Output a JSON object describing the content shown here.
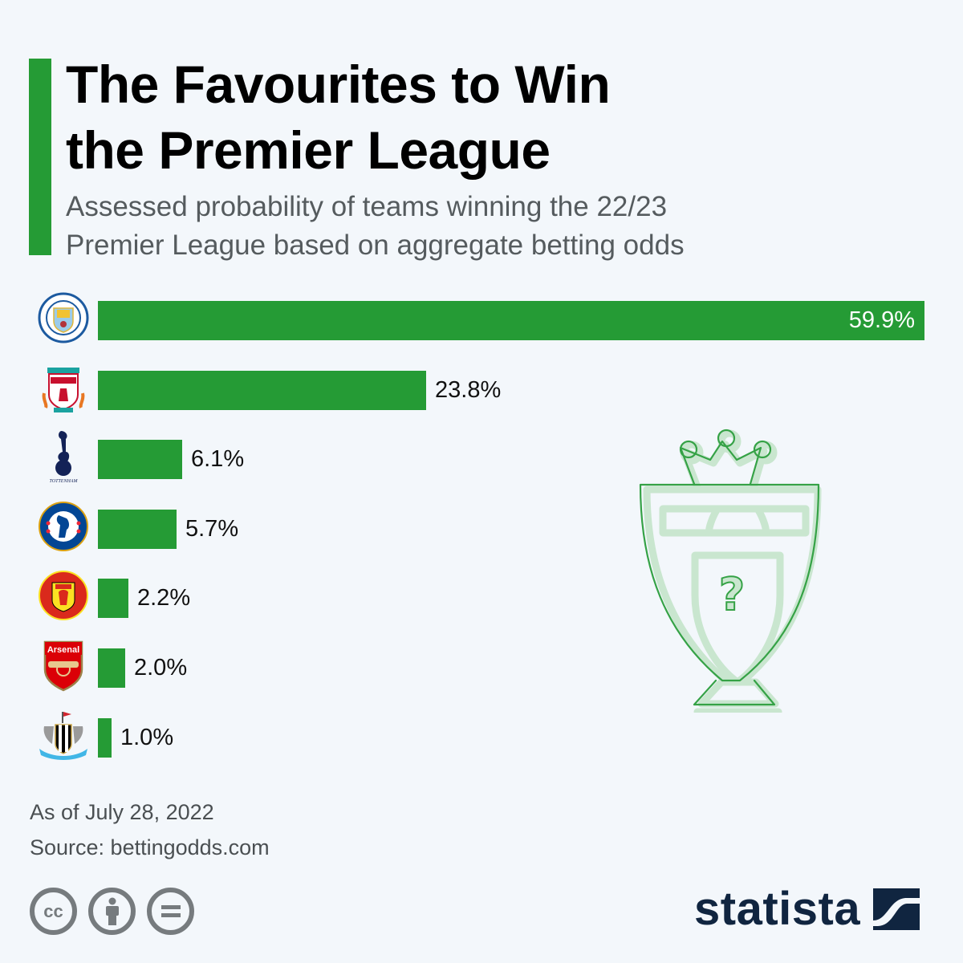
{
  "header": {
    "title": "The Favourites to Win the Premier League",
    "title_line1": "The Favourites to Win",
    "title_line2": "the Premier League",
    "subtitle_line1": "Assessed probability of teams winning the 22/23",
    "subtitle_line2": "Premier League based on aggregate betting odds"
  },
  "colors": {
    "bar": "#259b35",
    "accent": "#259b35",
    "background": "#f3f7fb",
    "brand": "#102540",
    "trophy_fill": "#c9e6cf",
    "trophy_stroke": "#35a246"
  },
  "chart_data": {
    "type": "bar",
    "orientation": "horizontal",
    "title": "The Favourites to Win the Premier League",
    "subtitle": "Assessed probability of teams winning the 22/23 Premier League based on aggregate betting odds",
    "categories": [
      "Manchester City",
      "Liverpool",
      "Tottenham Hotspur",
      "Chelsea",
      "Manchester United",
      "Arsenal",
      "Newcastle United"
    ],
    "values": [
      59.9,
      23.8,
      6.1,
      5.7,
      2.2,
      2.0,
      1.0
    ],
    "labels": [
      "59.9%",
      "23.8%",
      "6.1%",
      "5.7%",
      "2.2%",
      "2.0%",
      "1.0%"
    ],
    "unit": "%",
    "xlabel": "",
    "ylabel": "",
    "grid": false,
    "legend": "none",
    "category_labels": "club crests"
  },
  "rows": [
    {
      "team": "Manchester City",
      "crest": "man-city-crest",
      "label": "59.9%"
    },
    {
      "team": "Liverpool",
      "crest": "liverpool-crest",
      "label": "23.8%"
    },
    {
      "team": "Tottenham Hotspur",
      "crest": "tottenham-crest",
      "label": "6.1%"
    },
    {
      "team": "Chelsea",
      "crest": "chelsea-crest",
      "label": "5.7%"
    },
    {
      "team": "Manchester United",
      "crest": "man-united-crest",
      "label": "2.2%"
    },
    {
      "team": "Arsenal",
      "crest": "arsenal-crest",
      "label": "2.0%"
    },
    {
      "team": "Newcastle United",
      "crest": "newcastle-crest",
      "label": "1.0%"
    }
  ],
  "illustration": {
    "name": "premier-league-trophy-icon",
    "symbol": "?"
  },
  "footer": {
    "date_note": "As of July 28, 2022",
    "source": "Source: bettingodds.com",
    "license_icons": [
      "cc",
      "by",
      "nd"
    ],
    "cc_label": "cc",
    "nd_label": "=",
    "brand": "statista"
  }
}
